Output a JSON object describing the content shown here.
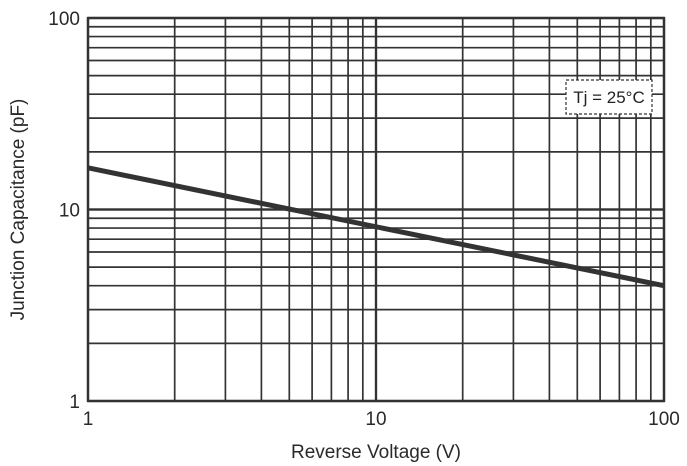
{
  "chart_data": {
    "type": "line",
    "title": "",
    "xlabel": "Reverse Voltage (V)",
    "ylabel": "Junction Capacitance (pF)",
    "xscale": "log",
    "yscale": "log",
    "xlim": [
      1,
      100
    ],
    "ylim": [
      1,
      100
    ],
    "grid": true,
    "x_ticks": [
      {
        "value": 1,
        "label": "1"
      },
      {
        "value": 10,
        "label": "10"
      },
      {
        "value": 100,
        "label": "100"
      }
    ],
    "y_ticks": [
      {
        "value": 1,
        "label": "1"
      },
      {
        "value": 10,
        "label": "10"
      },
      {
        "value": 100,
        "label": "100"
      }
    ],
    "series": [
      {
        "x": [
          1,
          100
        ],
        "y": [
          16.5,
          4.0
        ],
        "color": "#333333"
      }
    ],
    "annotations": [
      {
        "text": "Tj = 25°C",
        "position": "top-right"
      }
    ]
  }
}
